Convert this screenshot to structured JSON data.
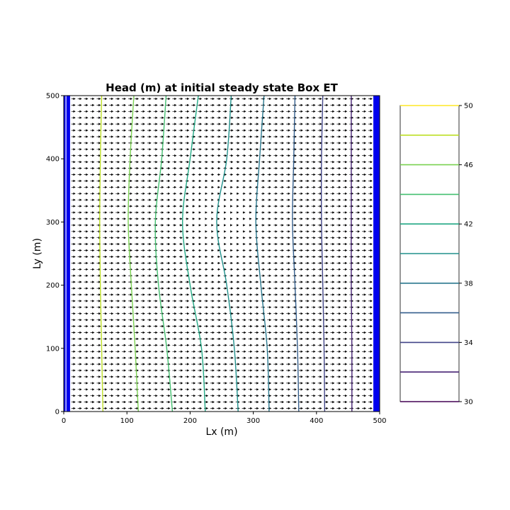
{
  "chart_data": {
    "type": "contour",
    "title": "Head (m) at initial steady state Box ET",
    "xlabel": "Lx (m)",
    "ylabel": "Ly (m)",
    "xlim": [
      0,
      500
    ],
    "ylim": [
      0,
      500
    ],
    "xticks": [
      0,
      100,
      200,
      300,
      400,
      500
    ],
    "yticks": [
      0,
      100,
      200,
      300,
      400,
      500
    ],
    "boundary_color": "#0000ee",
    "boundary_cells": [
      {
        "name": "left-boundary",
        "x0": 0,
        "x1": 10
      },
      {
        "name": "right-boundary",
        "x0": 490,
        "x1": 500
      }
    ],
    "contour_levels": [
      48,
      46,
      44,
      42,
      40,
      38,
      36,
      34,
      32
    ],
    "contour_colors": [
      "#bddf26",
      "#7ad151",
      "#44bf70",
      "#22a884",
      "#21918c",
      "#2a788e",
      "#355f8d",
      "#414487",
      "#482475"
    ],
    "contour_lines": [
      {
        "level": 48,
        "points": [
          [
            62,
            0
          ],
          [
            60,
            100
          ],
          [
            58,
            200
          ],
          [
            57,
            300
          ],
          [
            58,
            400
          ],
          [
            60,
            500
          ]
        ]
      },
      {
        "level": 46,
        "points": [
          [
            118,
            0
          ],
          [
            113,
            100
          ],
          [
            107,
            200
          ],
          [
            102,
            300
          ],
          [
            105,
            400
          ],
          [
            111,
            500
          ]
        ]
      },
      {
        "level": 44,
        "points": [
          [
            172,
            0
          ],
          [
            163,
            100
          ],
          [
            150,
            200
          ],
          [
            145,
            300
          ],
          [
            155,
            400
          ],
          [
            162,
            500
          ]
        ]
      },
      {
        "level": 42,
        "points": [
          [
            224,
            0
          ],
          [
            218,
            100
          ],
          [
            200,
            200
          ],
          [
            188,
            300
          ],
          [
            200,
            400
          ],
          [
            213,
            500
          ]
        ]
      },
      {
        "level": 40,
        "points": [
          [
            276,
            0
          ],
          [
            270,
            100
          ],
          [
            258,
            200
          ],
          [
            242,
            300
          ],
          [
            258,
            400
          ],
          [
            265,
            500
          ]
        ]
      },
      {
        "level": 38,
        "points": [
          [
            325,
            0
          ],
          [
            322,
            100
          ],
          [
            312,
            200
          ],
          [
            304,
            300
          ],
          [
            310,
            400
          ],
          [
            317,
            500
          ]
        ]
      },
      {
        "level": 36,
        "points": [
          [
            372,
            0
          ],
          [
            370,
            100
          ],
          [
            366,
            200
          ],
          [
            362,
            300
          ],
          [
            364,
            400
          ],
          [
            366,
            500
          ]
        ]
      },
      {
        "level": 34,
        "points": [
          [
            413,
            0
          ],
          [
            412,
            100
          ],
          [
            410,
            200
          ],
          [
            408,
            300
          ],
          [
            408,
            400
          ],
          [
            410,
            500
          ]
        ]
      },
      {
        "level": 32,
        "points": [
          [
            456,
            0
          ],
          [
            456,
            100
          ],
          [
            455,
            200
          ],
          [
            455,
            300
          ],
          [
            455,
            400
          ],
          [
            455,
            500
          ]
        ]
      }
    ],
    "flow_vectors": {
      "direction": "+x",
      "color": "#000000"
    },
    "colorbar": {
      "range": [
        30,
        50
      ],
      "tick_labels": [
        "50",
        "46",
        "42",
        "38",
        "34",
        "30"
      ],
      "tick_values": [
        50,
        46,
        42,
        38,
        34,
        30
      ],
      "levels": [
        50,
        48,
        46,
        44,
        42,
        40,
        38,
        36,
        34,
        32,
        30
      ],
      "colors": [
        "#fde725",
        "#bddf26",
        "#7ad151",
        "#44bf70",
        "#22a884",
        "#21918c",
        "#2a788e",
        "#355f8d",
        "#414487",
        "#482475",
        "#440154"
      ]
    }
  }
}
